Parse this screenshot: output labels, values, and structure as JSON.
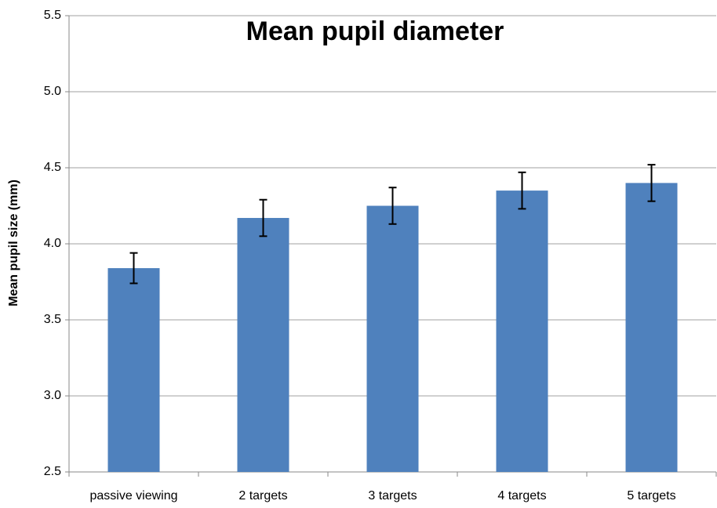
{
  "chart_data": {
    "type": "bar",
    "title": "Mean pupil diameter",
    "y_label": "Mean pupil size (mm)",
    "categories": [
      "passive viewing",
      "2 targets",
      "3 targets",
      "4 targets",
      "5 targets"
    ],
    "values": [
      3.84,
      4.17,
      4.25,
      4.35,
      4.4
    ],
    "errors": [
      0.1,
      0.12,
      0.12,
      0.12,
      0.12
    ],
    "color": "#4f81bd",
    "ylim": [
      2.5,
      5.5
    ],
    "yticks": [
      2.5,
      {
        "value": 3,
        "label": "3.0"
      },
      3.5,
      {
        "value": 4,
        "label": "4.0"
      },
      4.5,
      {
        "value": 5,
        "label": "5.0"
      },
      5.5
    ],
    "grid": true
  }
}
